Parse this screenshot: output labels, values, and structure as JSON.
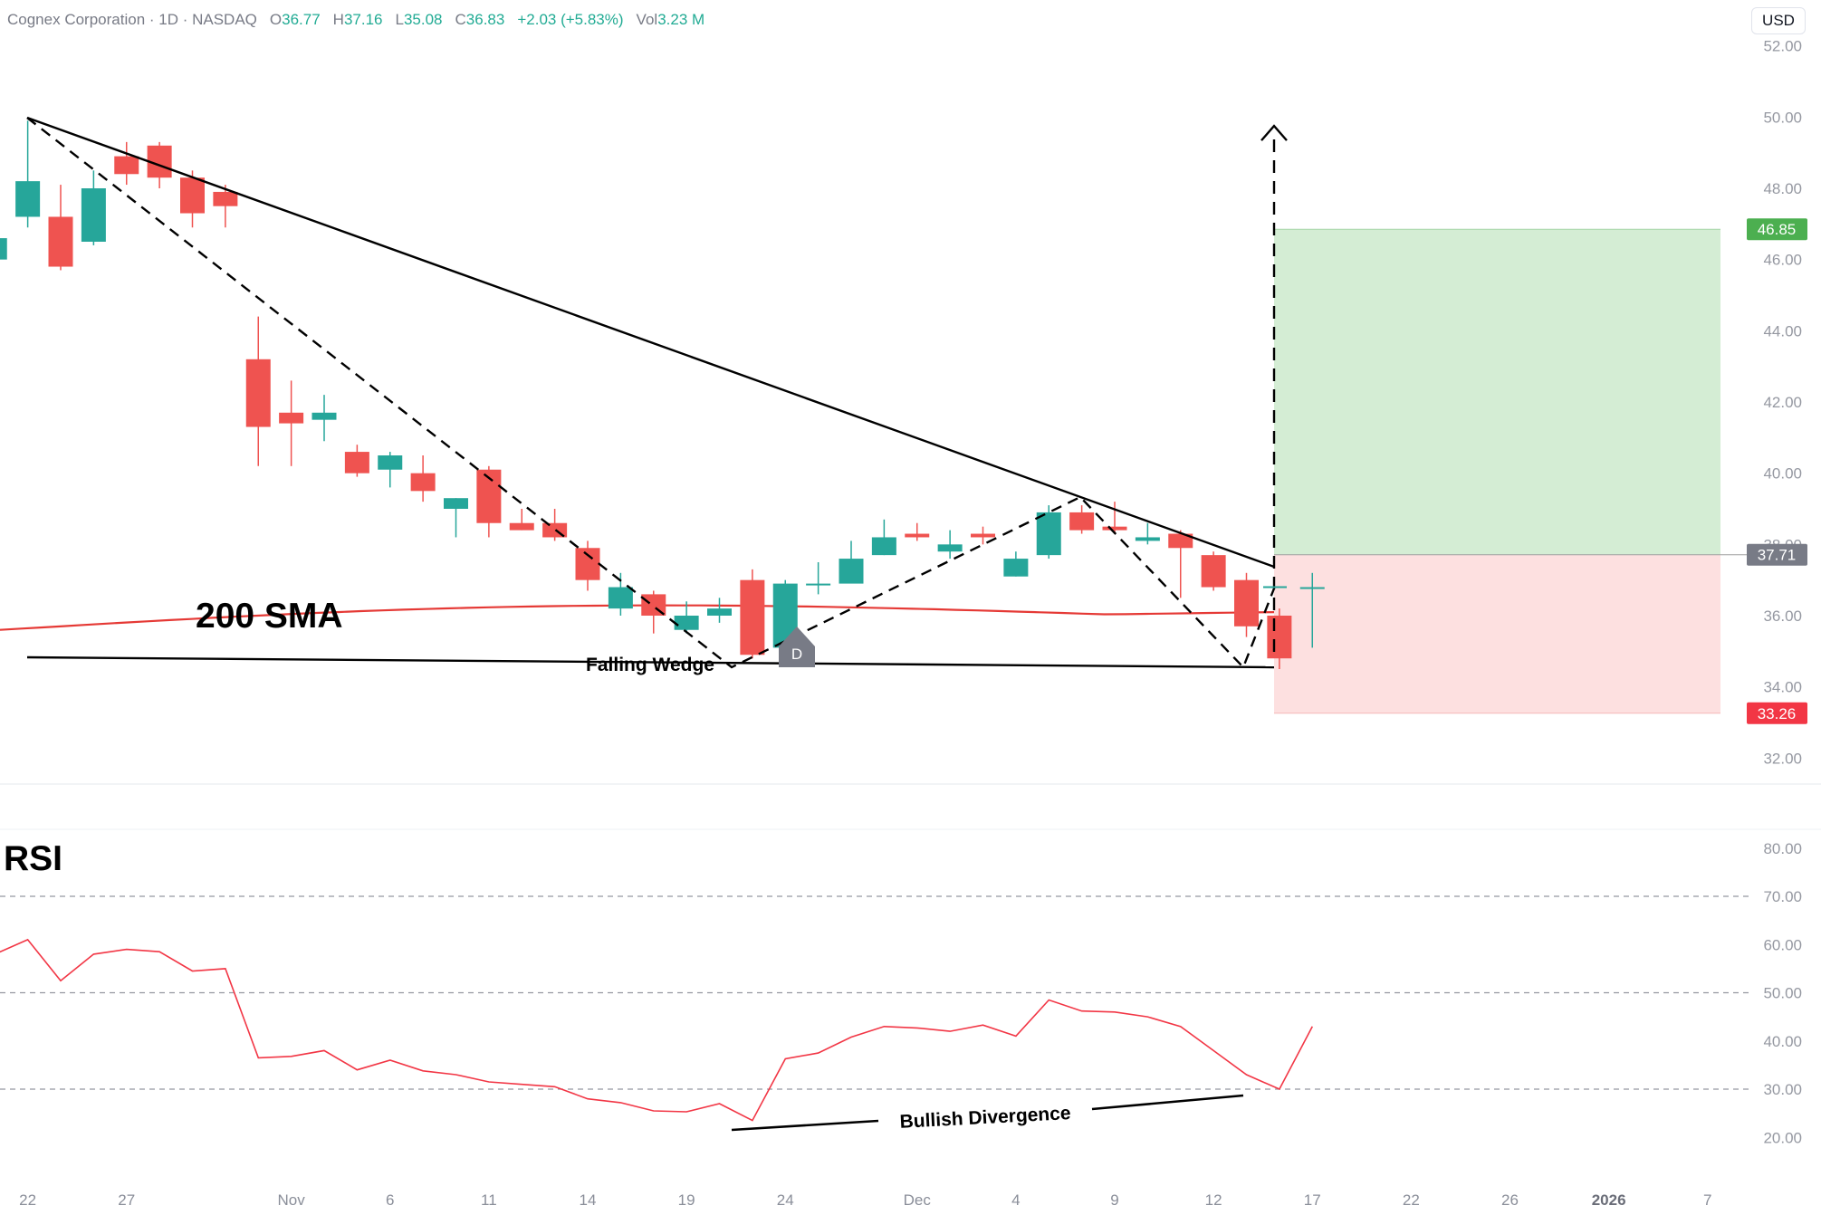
{
  "header": {
    "symbol": "Cognex Corporation · 1D · NASDAQ",
    "open_label": "O",
    "open": "36.77",
    "high_label": "H",
    "high": "37.16",
    "low_label": "L",
    "low": "35.08",
    "close_label": "C",
    "close": "36.83",
    "change": "+2.03 (+5.83%)",
    "vol_label": "Vol",
    "vol": "3.23 M"
  },
  "currency_button": "USD",
  "colors": {
    "up": "#26a69a",
    "down": "#ef5350",
    "sma": "#e53935",
    "rsi": "#f23645",
    "target_zone": "#d4edd4",
    "stop_zone": "#fde0e0",
    "target_badge": "#4caf50",
    "stop_badge": "#f23645",
    "entry_badge": "#787b86"
  },
  "annotations": {
    "sma_label": "200 SMA",
    "pattern_label": "Falling Wedge",
    "rsi_title": "RSI",
    "divergence_label": "Bullish Divergence",
    "marker_letter": "D"
  },
  "chart_data": [
    {
      "type": "candlestick",
      "title": "",
      "price_axis_ticks": [
        "52.00",
        "50.00",
        "48.00",
        "46.00",
        "44.00",
        "42.00",
        "40.00",
        "38.00",
        "36.00",
        "34.00",
        "32.00"
      ],
      "ylim": [
        31,
        52
      ],
      "date_axis_ticks": [
        {
          "label": "22",
          "index": 1
        },
        {
          "label": "27",
          "index": 4
        },
        {
          "label": "Nov",
          "index": 9
        },
        {
          "label": "6",
          "index": 12
        },
        {
          "label": "11",
          "index": 15
        },
        {
          "label": "14",
          "index": 18
        },
        {
          "label": "19",
          "index": 21
        },
        {
          "label": "24",
          "index": 24
        },
        {
          "label": "Dec",
          "index": 28
        },
        {
          "label": "4",
          "index": 31
        },
        {
          "label": "9",
          "index": 34
        },
        {
          "label": "12",
          "index": 37
        },
        {
          "label": "17",
          "index": 40
        },
        {
          "label": "22",
          "index": 43
        },
        {
          "label": "26",
          "index": 46
        },
        {
          "label": "2026",
          "index": 49,
          "bold": true
        },
        {
          "label": "7",
          "index": 52
        }
      ],
      "candles": [
        {
          "o": 46.0,
          "h": 46.9,
          "l": 45.6,
          "c": 46.6
        },
        {
          "o": 47.2,
          "h": 49.9,
          "l": 46.9,
          "c": 48.2
        },
        {
          "o": 47.2,
          "h": 48.1,
          "l": 45.7,
          "c": 45.8
        },
        {
          "o": 46.5,
          "h": 48.5,
          "l": 46.4,
          "c": 48.0
        },
        {
          "o": 48.9,
          "h": 49.3,
          "l": 48.1,
          "c": 48.4
        },
        {
          "o": 49.2,
          "h": 49.3,
          "l": 48.0,
          "c": 48.3
        },
        {
          "o": 48.3,
          "h": 48.5,
          "l": 46.9,
          "c": 47.3
        },
        {
          "o": 47.9,
          "h": 48.1,
          "l": 46.9,
          "c": 47.5
        },
        {
          "o": 43.2,
          "h": 44.4,
          "l": 40.2,
          "c": 41.3
        },
        {
          "o": 41.7,
          "h": 42.6,
          "l": 40.2,
          "c": 41.4
        },
        {
          "o": 41.5,
          "h": 42.2,
          "l": 40.9,
          "c": 41.7
        },
        {
          "o": 40.6,
          "h": 40.8,
          "l": 39.9,
          "c": 40.0
        },
        {
          "o": 40.1,
          "h": 40.6,
          "l": 39.6,
          "c": 40.5
        },
        {
          "o": 40.0,
          "h": 40.5,
          "l": 39.2,
          "c": 39.5
        },
        {
          "o": 39.0,
          "h": 39.3,
          "l": 38.2,
          "c": 39.3
        },
        {
          "o": 40.1,
          "h": 40.2,
          "l": 38.2,
          "c": 38.6
        },
        {
          "o": 38.6,
          "h": 39.0,
          "l": 38.4,
          "c": 38.4
        },
        {
          "o": 38.6,
          "h": 39.0,
          "l": 38.1,
          "c": 38.2
        },
        {
          "o": 37.9,
          "h": 38.1,
          "l": 36.7,
          "c": 37.0
        },
        {
          "o": 36.2,
          "h": 37.2,
          "l": 36.0,
          "c": 36.8
        },
        {
          "o": 36.6,
          "h": 36.7,
          "l": 35.5,
          "c": 36.0
        },
        {
          "o": 35.6,
          "h": 36.4,
          "l": 35.5,
          "c": 36.0
        },
        {
          "o": 36.0,
          "h": 36.5,
          "l": 35.8,
          "c": 36.2
        },
        {
          "o": 37.0,
          "h": 37.3,
          "l": 34.8,
          "c": 34.9
        },
        {
          "o": 35.1,
          "h": 37.0,
          "l": 35.0,
          "c": 36.9
        },
        {
          "o": 36.9,
          "h": 37.5,
          "l": 36.6,
          "c": 36.9
        },
        {
          "o": 36.9,
          "h": 38.1,
          "l": 37.0,
          "c": 37.6
        },
        {
          "o": 37.7,
          "h": 38.7,
          "l": 37.7,
          "c": 38.2
        },
        {
          "o": 38.3,
          "h": 38.6,
          "l": 38.1,
          "c": 38.2
        },
        {
          "o": 37.8,
          "h": 38.4,
          "l": 37.6,
          "c": 38.0
        },
        {
          "o": 38.3,
          "h": 38.5,
          "l": 38.0,
          "c": 38.2
        },
        {
          "o": 37.1,
          "h": 37.8,
          "l": 37.1,
          "c": 37.6
        },
        {
          "o": 37.7,
          "h": 39.1,
          "l": 37.6,
          "c": 38.9
        },
        {
          "o": 38.9,
          "h": 39.1,
          "l": 38.3,
          "c": 38.4
        },
        {
          "o": 38.5,
          "h": 39.2,
          "l": 38.3,
          "c": 38.4
        },
        {
          "o": 38.1,
          "h": 38.6,
          "l": 38.0,
          "c": 38.2
        },
        {
          "o": 38.3,
          "h": 38.4,
          "l": 36.5,
          "c": 37.9
        },
        {
          "o": 37.7,
          "h": 37.8,
          "l": 36.7,
          "c": 36.8
        },
        {
          "o": 37.0,
          "h": 37.2,
          "l": 35.4,
          "c": 35.7
        },
        {
          "o": 36.0,
          "h": 36.2,
          "l": 34.5,
          "c": 34.8
        },
        {
          "o": 36.8,
          "h": 37.2,
          "l": 35.1,
          "c": 36.8
        }
      ],
      "sma_200": {
        "name": "200 SMA",
        "start": 35.6,
        "end": 36.1
      },
      "position": {
        "target": "46.85",
        "entry": "37.71",
        "stop": "33.26",
        "projection_top": 49.7
      }
    },
    {
      "type": "line",
      "title": "RSI",
      "ylim": [
        15,
        82
      ],
      "axis_ticks": [
        "80.00",
        "70.00",
        "60.00",
        "50.00",
        "40.00",
        "30.00",
        "20.00"
      ],
      "reference_lines": [
        70,
        50,
        30
      ],
      "values": [
        58.0,
        61.0,
        52.5,
        58.0,
        59.0,
        58.5,
        54.5,
        55.0,
        36.5,
        36.8,
        38.0,
        34.0,
        36.0,
        33.8,
        33.0,
        31.5,
        31.0,
        30.5,
        28.0,
        27.2,
        25.5,
        25.3,
        27.0,
        23.5,
        36.3,
        37.5,
        40.8,
        43.0,
        42.7,
        42.0,
        43.3,
        41.0,
        48.5,
        46.2,
        46.0,
        45.0,
        43.0,
        38.0,
        33.0,
        30.0,
        43.0
      ]
    }
  ]
}
